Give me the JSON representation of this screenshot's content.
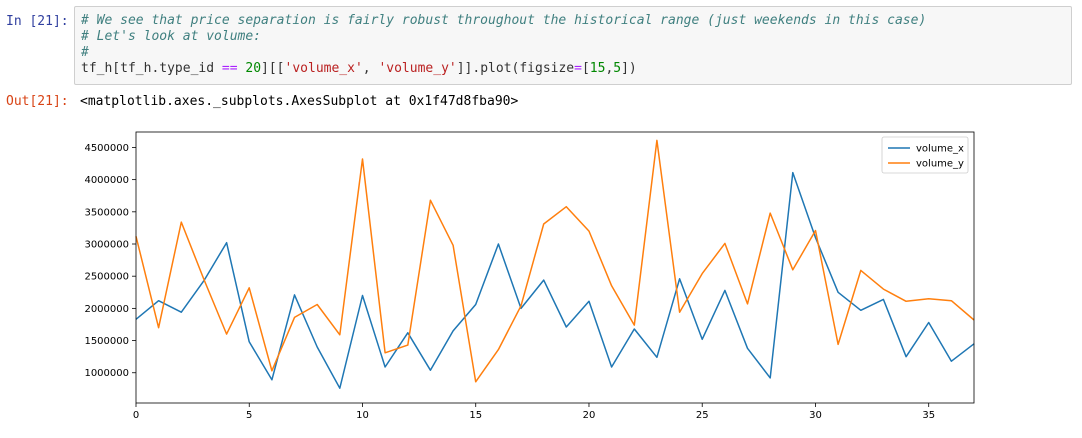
{
  "cell": {
    "in_prompt": "In [21]:",
    "out_prompt": "Out[21]:",
    "code": {
      "comment1": "# We see that price separation is fairly robust throughout the historical range (just weekends in this case)",
      "comment2": "# Let's look at volume:",
      "comment3": "#",
      "line4_a": "tf_h[tf_h.type_id ",
      "line4_op": "==",
      "line4_b": " ",
      "line4_num": "20",
      "line4_c": "][[",
      "line4_str1": "'volume_x'",
      "line4_d": ", ",
      "line4_str2": "'volume_y'",
      "line4_e": "]].plot(figsize",
      "line4_op2": "=",
      "line4_f": "[",
      "line4_num2": "15",
      "line4_g": ",",
      "line4_num3": "5",
      "line4_h": "])"
    },
    "output_text": "<matplotlib.axes._subplots.AxesSubplot at 0x1f47d8fba90>"
  },
  "chart_data": {
    "type": "line",
    "title": "",
    "xlabel": "",
    "ylabel": "",
    "xlim": [
      0,
      37
    ],
    "ylim": [
      530000,
      4740000
    ],
    "xticks": [
      0,
      5,
      10,
      15,
      20,
      25,
      30,
      35
    ],
    "yticks": [
      1000000,
      1500000,
      2000000,
      2500000,
      3000000,
      3500000,
      4000000,
      4500000
    ],
    "grid": false,
    "legend_position": "upper right",
    "x": [
      0,
      1,
      2,
      3,
      4,
      5,
      6,
      7,
      8,
      9,
      10,
      11,
      12,
      13,
      14,
      15,
      16,
      17,
      18,
      19,
      20,
      21,
      22,
      23,
      24,
      25,
      26,
      27,
      28,
      29,
      30,
      31,
      32,
      33,
      34,
      35,
      36,
      37
    ],
    "series": [
      {
        "name": "volume_x",
        "color": "#1f77b4",
        "values": [
          1830000,
          2120000,
          1940000,
          2430000,
          3020000,
          1480000,
          890000,
          2210000,
          1400000,
          760000,
          2200000,
          1090000,
          1620000,
          1040000,
          1650000,
          2060000,
          3000000,
          2000000,
          2440000,
          1710000,
          2110000,
          1090000,
          1680000,
          1240000,
          2460000,
          1520000,
          2280000,
          1380000,
          920000,
          4110000,
          3100000,
          2250000,
          1970000,
          2140000,
          1250000,
          1780000,
          1180000,
          1450000
        ]
      },
      {
        "name": "volume_y",
        "color": "#ff7f0e",
        "values": [
          3120000,
          1700000,
          3340000,
          2450000,
          1600000,
          2320000,
          1030000,
          1860000,
          2060000,
          1590000,
          4320000,
          1310000,
          1430000,
          3680000,
          2980000,
          860000,
          1360000,
          2040000,
          3310000,
          3580000,
          3200000,
          2350000,
          1740000,
          4610000,
          1940000,
          2540000,
          3010000,
          2070000,
          3480000,
          2600000,
          3210000,
          1440000,
          2590000,
          2300000,
          2110000,
          2150000,
          2120000,
          1820000
        ]
      }
    ]
  }
}
